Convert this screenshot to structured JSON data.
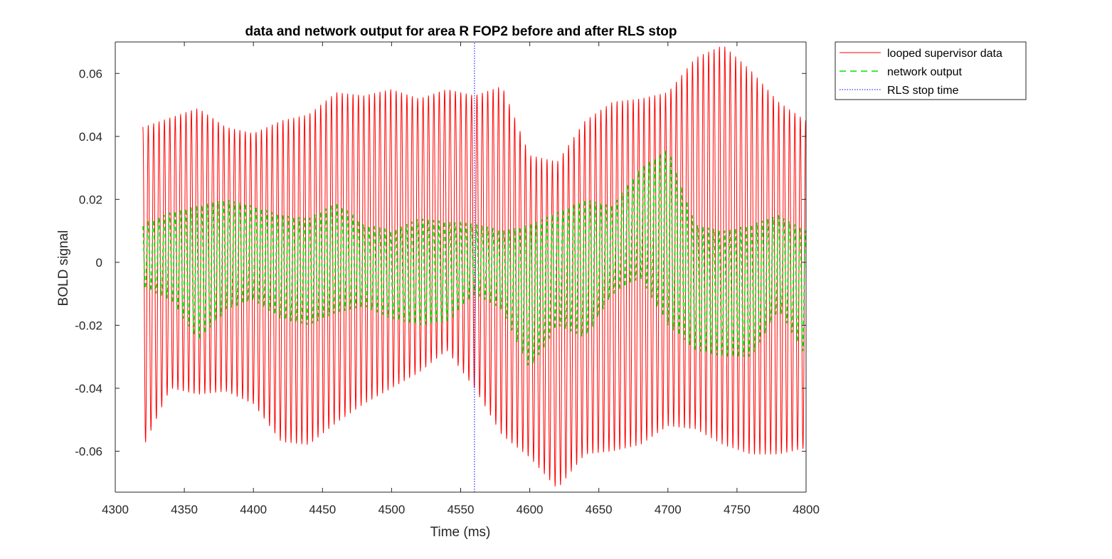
{
  "chart_data": {
    "type": "line",
    "title": "data and network output for area R FOP2 before and after RLS stop",
    "xlabel": "Time (ms)",
    "ylabel": "BOLD signal",
    "xlim": [
      4300,
      4800
    ],
    "ylim": [
      -0.073,
      0.07
    ],
    "x_ticks": [
      4300,
      4350,
      4400,
      4450,
      4500,
      4550,
      4600,
      4650,
      4700,
      4750,
      4800
    ],
    "x_tick_labels": [
      "4300",
      "4350",
      "4400",
      "4450",
      "4500",
      "4550",
      "4600",
      "4650",
      "4700",
      "4750",
      "4800"
    ],
    "y_ticks": [
      -0.06,
      -0.04,
      -0.02,
      0,
      0.02,
      0.04,
      0.06
    ],
    "y_tick_labels": [
      "-0.06",
      "-0.04",
      "-0.02",
      "0",
      "0.02",
      "0.04",
      "0.06"
    ],
    "grid": false,
    "legend_position": "top-right-outside",
    "rls_stop_time": 4560,
    "series": [
      {
        "name": "looped supervisor data",
        "color": "#ff0000",
        "line_style": "solid",
        "x_start": 4320,
        "x_end": 4800,
        "oscillation_period_ms": 3.9,
        "envelope_t": [
          4320,
          4340,
          4360,
          4380,
          4400,
          4420,
          4440,
          4460,
          4480,
          4500,
          4520,
          4540,
          4560,
          4580,
          4600,
          4620,
          4640,
          4660,
          4680,
          4700,
          4720,
          4740,
          4760,
          4780,
          4800
        ],
        "envelope_upper": [
          0.043,
          0.046,
          0.049,
          0.043,
          0.041,
          0.045,
          0.047,
          0.054,
          0.053,
          0.055,
          0.052,
          0.055,
          0.053,
          0.056,
          0.034,
          0.032,
          0.045,
          0.051,
          0.052,
          0.054,
          0.065,
          0.069,
          0.061,
          0.051,
          0.045
        ],
        "envelope_lower": [
          -0.059,
          -0.04,
          -0.042,
          -0.041,
          -0.045,
          -0.057,
          -0.058,
          -0.051,
          -0.045,
          -0.04,
          -0.035,
          -0.028,
          -0.04,
          -0.055,
          -0.062,
          -0.072,
          -0.061,
          -0.06,
          -0.058,
          -0.052,
          -0.053,
          -0.058,
          -0.061,
          -0.061,
          -0.059
        ],
        "center_t": [
          4320,
          4360,
          4400,
          4440,
          4480,
          4520,
          4560,
          4600,
          4640,
          4680,
          4720,
          4760,
          4800
        ],
        "center_values": [
          -0.006,
          0.003,
          -0.001,
          0.002,
          0.004,
          0.008,
          0.006,
          -0.006,
          -0.005,
          0.009,
          0.003,
          -0.007,
          -0.005
        ]
      },
      {
        "name": "network output",
        "color": "#00e000",
        "line_style": "dashed",
        "x_start": 4320,
        "x_end": 4800,
        "oscillation_period_ms": 3.9,
        "envelope_t": [
          4320,
          4340,
          4360,
          4380,
          4400,
          4420,
          4440,
          4460,
          4480,
          4500,
          4520,
          4540,
          4560,
          4580,
          4600,
          4620,
          4640,
          4660,
          4680,
          4700,
          4720,
          4740,
          4760,
          4780,
          4800
        ],
        "envelope_upper": [
          0.012,
          0.016,
          0.018,
          0.02,
          0.018,
          0.015,
          0.014,
          0.019,
          0.012,
          0.01,
          0.014,
          0.013,
          0.012,
          0.01,
          0.012,
          0.016,
          0.02,
          0.018,
          0.03,
          0.036,
          0.012,
          0.01,
          0.012,
          0.015,
          0.01
        ],
        "envelope_lower": [
          -0.008,
          -0.012,
          -0.025,
          -0.015,
          -0.012,
          -0.018,
          -0.02,
          -0.016,
          -0.014,
          -0.018,
          -0.02,
          -0.019,
          -0.01,
          -0.015,
          -0.034,
          -0.02,
          -0.024,
          -0.01,
          -0.005,
          -0.02,
          -0.028,
          -0.03,
          -0.03,
          -0.015,
          -0.03
        ],
        "center_t": [
          4320,
          4360,
          4400,
          4440,
          4480,
          4520,
          4560,
          4600,
          4640,
          4680,
          4720,
          4760,
          4800
        ],
        "center_values": [
          0.0,
          -0.003,
          0.004,
          -0.002,
          0.002,
          0.005,
          -0.001,
          -0.008,
          0.002,
          0.018,
          -0.004,
          -0.008,
          -0.012
        ]
      },
      {
        "name": "RLS stop time",
        "color": "#0000ff",
        "line_style": "dotted",
        "x": [
          4560,
          4560
        ],
        "y": [
          -0.073,
          0.07
        ]
      }
    ]
  }
}
